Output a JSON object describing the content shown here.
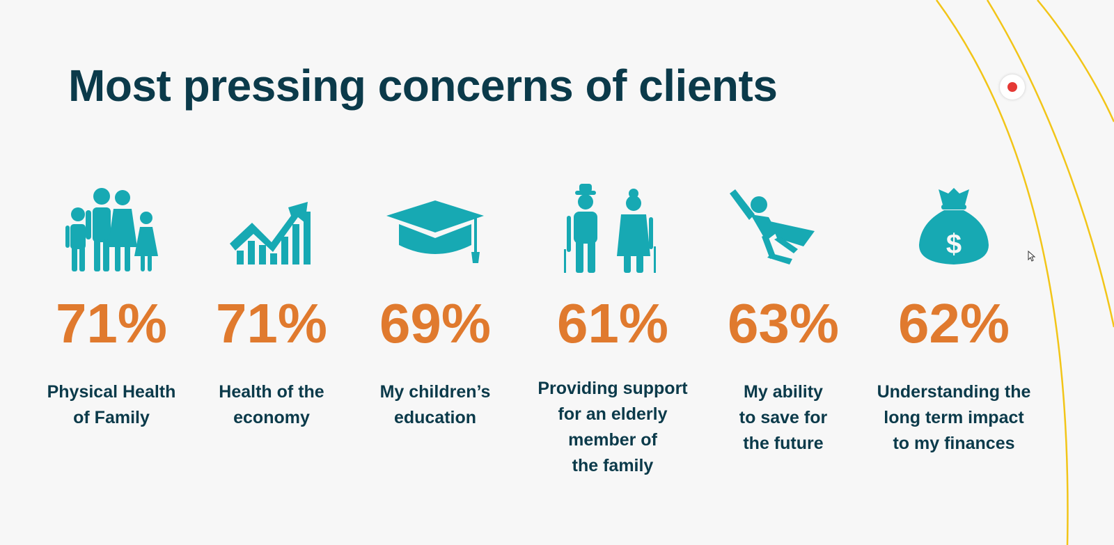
{
  "slide": {
    "title": "Most pressing concerns of clients",
    "colors": {
      "title": "#0b3a4a",
      "percent": "#e07a2e",
      "icon": "#17a9b3",
      "arcs": "#f2c518"
    },
    "concerns": [
      {
        "icon": "family-icon",
        "percent": "71%",
        "label_lines": [
          "Physical Health",
          "of Family"
        ]
      },
      {
        "icon": "rising-chart-icon",
        "percent": "71%",
        "label_lines": [
          "Health of the",
          "economy"
        ]
      },
      {
        "icon": "graduation-cap-icon",
        "percent": "69%",
        "label_lines": [
          "My children’s",
          "education"
        ]
      },
      {
        "icon": "elderly-couple-icon",
        "percent": "61%",
        "label_lines": [
          "Providing support",
          "for an elderly",
          "member of",
          "the family"
        ]
      },
      {
        "icon": "superhero-icon",
        "percent": "63%",
        "label_lines": [
          "My ability",
          "to save for",
          "the future"
        ]
      },
      {
        "icon": "money-bag-icon",
        "percent": "62%",
        "label_lines": [
          "Understanding the",
          "long term impact",
          "to my finances"
        ]
      }
    ]
  },
  "overlay": {
    "record_icon": "record-icon",
    "cursor_icon": "mouse-pointer-icon"
  }
}
